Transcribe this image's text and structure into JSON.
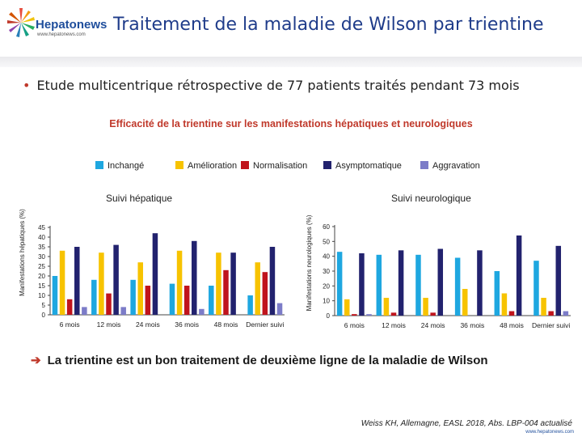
{
  "brand": {
    "name": "Hepatonews",
    "url": "www.hepatonews.com"
  },
  "title": "Traitement de la maladie de Wilson par trientine",
  "bullet": "Etude multicentrique rétrospective de 77 patients traités pendant 73 mois",
  "chart_heading": "Efficacité de la trientine sur les manifestations hépatiques et neurologiques",
  "legend": [
    {
      "label": "Inchangé",
      "color": "#1ea7e0"
    },
    {
      "label": "Amélioration",
      "color": "#f7c300"
    },
    {
      "label": "Normalisation",
      "color": "#c0141c"
    },
    {
      "label": "Asymptomatique",
      "color": "#22226e"
    },
    {
      "label": "Aggravation",
      "color": "#7c7cc8"
    }
  ],
  "chart_data": [
    {
      "type": "bar",
      "title": "Suivi hépatique",
      "ylabel": "Manifestations hépatiques (%)",
      "ylim": [
        0,
        45
      ],
      "yticks": [
        0,
        5,
        10,
        15,
        20,
        25,
        30,
        35,
        40,
        45
      ],
      "categories": [
        "6 mois",
        "12 mois",
        "24 mois",
        "36 mois",
        "48 mois",
        "Dernier suivi"
      ],
      "series": [
        {
          "name": "Inchangé",
          "values": [
            20,
            18,
            18,
            16,
            15,
            10
          ]
        },
        {
          "name": "Amélioration",
          "values": [
            33,
            32,
            27,
            33,
            32,
            27
          ]
        },
        {
          "name": "Normalisation",
          "values": [
            8,
            11,
            15,
            15,
            23,
            22
          ]
        },
        {
          "name": "Asymptomatique",
          "values": [
            35,
            36,
            42,
            38,
            32,
            35
          ]
        },
        {
          "name": "Aggravation",
          "values": [
            4,
            4,
            0,
            3,
            0,
            6
          ]
        }
      ]
    },
    {
      "type": "bar",
      "title": "Suivi neurologique",
      "ylabel": "Manifestations neurologiques (%)",
      "ylim": [
        0,
        60
      ],
      "yticks": [
        0,
        10,
        20,
        30,
        40,
        50,
        60
      ],
      "categories": [
        "6 mois",
        "12 mois",
        "24 mois",
        "36 mois",
        "48 mois",
        "Dernier suivi"
      ],
      "series": [
        {
          "name": "Inchangé",
          "values": [
            43,
            41,
            41,
            39,
            30,
            37
          ]
        },
        {
          "name": "Amélioration",
          "values": [
            11,
            12,
            12,
            18,
            15,
            12
          ]
        },
        {
          "name": "Normalisation",
          "values": [
            1,
            2,
            2,
            0,
            3,
            3
          ]
        },
        {
          "name": "Asymptomatique",
          "values": [
            42,
            44,
            45,
            44,
            54,
            47
          ]
        },
        {
          "name": "Aggravation",
          "values": [
            1,
            0,
            0,
            0,
            0,
            3
          ]
        }
      ]
    }
  ],
  "conclusion": "La trientine est un bon traitement de deuxième ligne de la maladie de Wilson",
  "citation": "Weiss KH, Allemagne, EASL 2018, Abs. LBP-004 actualisé"
}
